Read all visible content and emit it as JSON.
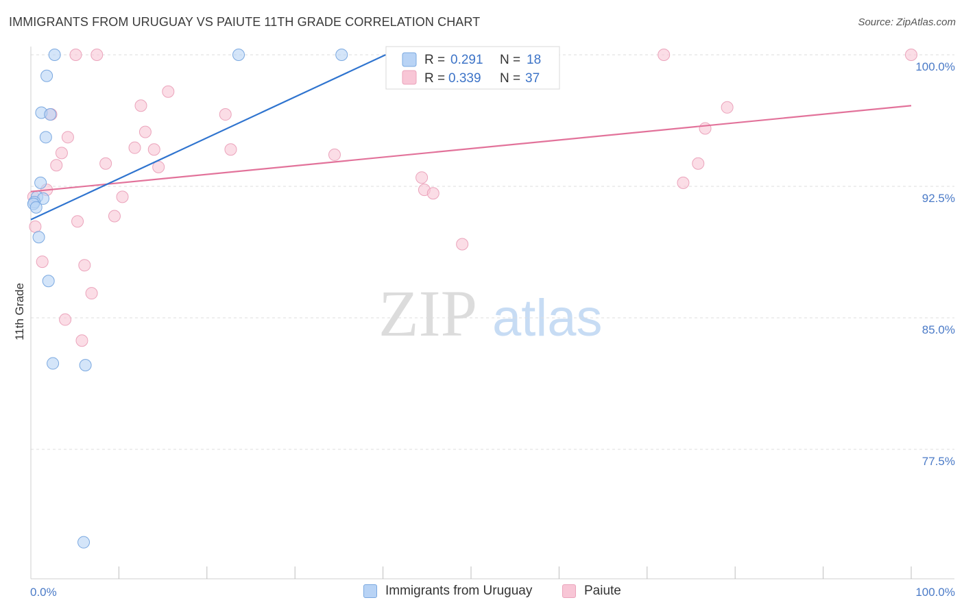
{
  "title": "IMMIGRANTS FROM URUGUAY VS PAIUTE 11TH GRADE CORRELATION CHART",
  "source": "Source: ZipAtlas.com",
  "watermark": {
    "zip": "ZIP",
    "atlas": "atlas"
  },
  "legend_top": [
    {
      "r_label": "R =",
      "r_value": "0.291",
      "n_label": "N =",
      "n_value": "18"
    },
    {
      "r_label": "R =",
      "r_value": "0.339",
      "n_label": "N =",
      "n_value": "37"
    }
  ],
  "legend_bottom": [
    {
      "label": "Immigrants from Uruguay"
    },
    {
      "label": "Paiute"
    }
  ],
  "colors": {
    "blue_fill": "#b8d3f5",
    "blue_stroke": "#7aa8e0",
    "blue_line": "#2f74cf",
    "pink_fill": "#f8c6d6",
    "pink_stroke": "#eba3bb",
    "pink_line": "#e2729a",
    "grid": "#dddddd",
    "axis_label": "#4a7ac7"
  },
  "chart_data": {
    "type": "scatter",
    "title": "IMMIGRANTS FROM URUGUAY VS PAIUTE 11TH GRADE CORRELATION CHART",
    "xlabel": "",
    "ylabel": "11th Grade",
    "xlim": [
      0,
      100
    ],
    "ylim": [
      69.5,
      100.7
    ],
    "x_tick_labels": [
      "0.0%",
      "100.0%"
    ],
    "y_ticks": [
      100.0,
      92.5,
      85.0,
      77.5
    ],
    "y_tick_labels": [
      "100.0%",
      "92.5%",
      "85.0%",
      "77.5%"
    ],
    "series": [
      {
        "name": "Immigrants from Uruguay",
        "color": "#b8d3f5",
        "points": [
          {
            "x": 2.7,
            "y": 100.0
          },
          {
            "x": 23.6,
            "y": 100.0
          },
          {
            "x": 35.3,
            "y": 100.0
          },
          {
            "x": 1.8,
            "y": 98.8
          },
          {
            "x": 1.2,
            "y": 96.7
          },
          {
            "x": 2.2,
            "y": 96.6
          },
          {
            "x": 1.7,
            "y": 95.3
          },
          {
            "x": 1.1,
            "y": 92.7
          },
          {
            "x": 0.7,
            "y": 91.9
          },
          {
            "x": 1.4,
            "y": 91.8
          },
          {
            "x": 0.4,
            "y": 91.6
          },
          {
            "x": 0.3,
            "y": 91.5
          },
          {
            "x": 0.6,
            "y": 91.3
          },
          {
            "x": 0.9,
            "y": 89.6
          },
          {
            "x": 2.0,
            "y": 87.1
          },
          {
            "x": 2.5,
            "y": 82.4
          },
          {
            "x": 6.2,
            "y": 82.3
          },
          {
            "x": 6.0,
            "y": 72.2
          }
        ],
        "trend": {
          "x": [
            0,
            40.3
          ],
          "y": [
            90.6,
            100.0
          ]
        }
      },
      {
        "name": "Paiute",
        "color": "#f8c6d6",
        "points": [
          {
            "x": 5.1,
            "y": 100.0
          },
          {
            "x": 7.5,
            "y": 100.0
          },
          {
            "x": 71.9,
            "y": 100.0
          },
          {
            "x": 100.0,
            "y": 100.0
          },
          {
            "x": 15.6,
            "y": 97.9
          },
          {
            "x": 12.5,
            "y": 97.1
          },
          {
            "x": 2.3,
            "y": 96.6
          },
          {
            "x": 22.1,
            "y": 96.6
          },
          {
            "x": 79.1,
            "y": 97.0
          },
          {
            "x": 13.0,
            "y": 95.6
          },
          {
            "x": 76.6,
            "y": 95.8
          },
          {
            "x": 4.2,
            "y": 95.3
          },
          {
            "x": 11.8,
            "y": 94.7
          },
          {
            "x": 14.0,
            "y": 94.6
          },
          {
            "x": 22.7,
            "y": 94.6
          },
          {
            "x": 3.5,
            "y": 94.4
          },
          {
            "x": 34.5,
            "y": 94.3
          },
          {
            "x": 2.9,
            "y": 93.7
          },
          {
            "x": 8.5,
            "y": 93.8
          },
          {
            "x": 14.5,
            "y": 93.6
          },
          {
            "x": 75.8,
            "y": 93.8
          },
          {
            "x": 44.4,
            "y": 93.0
          },
          {
            "x": 74.1,
            "y": 92.7
          },
          {
            "x": 44.7,
            "y": 92.3
          },
          {
            "x": 45.7,
            "y": 92.1
          },
          {
            "x": 1.8,
            "y": 92.3
          },
          {
            "x": 10.4,
            "y": 91.9
          },
          {
            "x": 9.5,
            "y": 90.8
          },
          {
            "x": 5.3,
            "y": 90.5
          },
          {
            "x": 0.5,
            "y": 90.2
          },
          {
            "x": 49.0,
            "y": 89.2
          },
          {
            "x": 1.3,
            "y": 88.2
          },
          {
            "x": 6.1,
            "y": 88.0
          },
          {
            "x": 6.9,
            "y": 86.4
          },
          {
            "x": 3.9,
            "y": 84.9
          },
          {
            "x": 5.8,
            "y": 83.7
          },
          {
            "x": 0.3,
            "y": 91.9
          }
        ],
        "trend": {
          "x": [
            0,
            100
          ],
          "y": [
            92.2,
            97.1
          ]
        }
      }
    ]
  }
}
